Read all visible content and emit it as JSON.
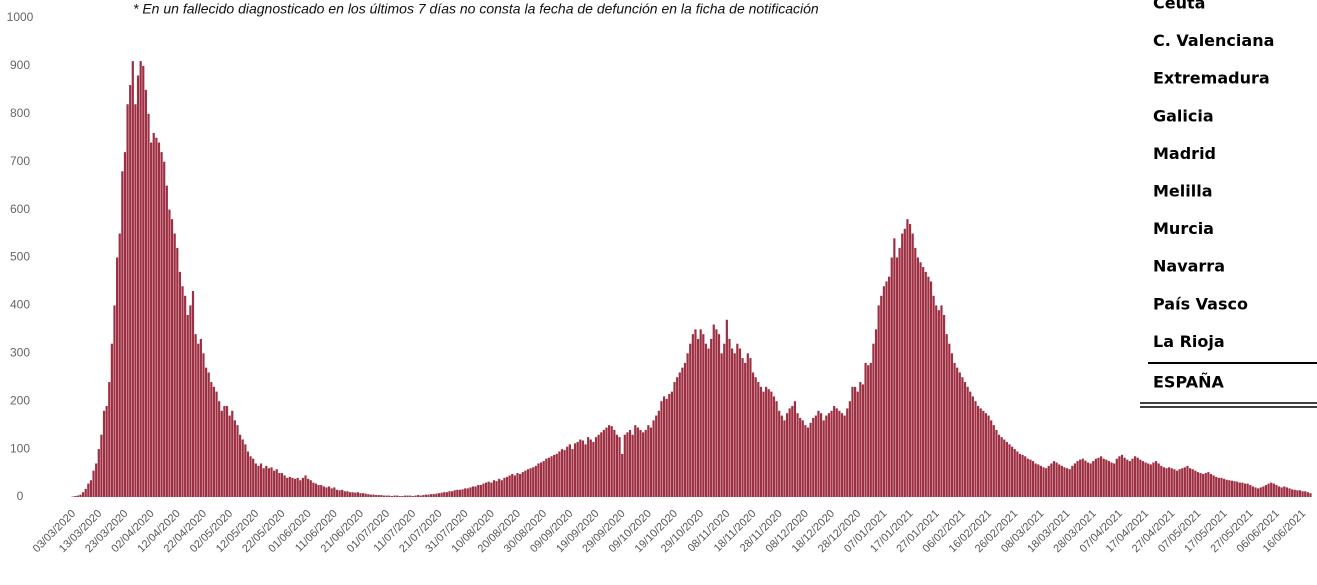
{
  "chart_data": {
    "type": "bar",
    "annotation": "* En un  fallecido diagnosticado en los últimos 7 días no consta la fecha de defunción en la ficha de notificación",
    "color": "#9e2f42",
    "ylim": [
      0,
      1000
    ],
    "yticks": [
      0,
      100,
      200,
      300,
      400,
      500,
      600,
      700,
      800,
      900,
      1000
    ],
    "categories": [
      "03/03/2020",
      null,
      null,
      null,
      null,
      null,
      null,
      null,
      null,
      null,
      "13/03/2020",
      null,
      null,
      null,
      null,
      null,
      null,
      null,
      null,
      null,
      "23/03/2020",
      null,
      null,
      null,
      null,
      null,
      null,
      null,
      null,
      null,
      "02/04/2020",
      null,
      null,
      null,
      null,
      null,
      null,
      null,
      null,
      null,
      "12/04/2020",
      null,
      null,
      null,
      null,
      null,
      null,
      null,
      null,
      null,
      "22/04/2020",
      null,
      null,
      null,
      null,
      null,
      null,
      null,
      null,
      null,
      "02/05/2020",
      null,
      null,
      null,
      null,
      null,
      null,
      null,
      null,
      null,
      "12/05/2020",
      null,
      null,
      null,
      null,
      null,
      null,
      null,
      null,
      null,
      "22/05/2020",
      null,
      null,
      null,
      null,
      null,
      null,
      null,
      null,
      null,
      "01/06/2020",
      null,
      null,
      null,
      null,
      null,
      null,
      null,
      null,
      null,
      "11/06/2020",
      null,
      null,
      null,
      null,
      null,
      null,
      null,
      null,
      null,
      "21/06/2020",
      null,
      null,
      null,
      null,
      null,
      null,
      null,
      null,
      null,
      "01/07/2020",
      null,
      null,
      null,
      null,
      null,
      null,
      null,
      null,
      null,
      "11/07/2020",
      null,
      null,
      null,
      null,
      null,
      null,
      null,
      null,
      null,
      "21/07/2020",
      null,
      null,
      null,
      null,
      null,
      null,
      null,
      null,
      null,
      "31/07/2020",
      null,
      null,
      null,
      null,
      null,
      null,
      null,
      null,
      null,
      "10/08/2020",
      null,
      null,
      null,
      null,
      null,
      null,
      null,
      null,
      null,
      "20/08/2020",
      null,
      null,
      null,
      null,
      null,
      null,
      null,
      null,
      null,
      "30/08/2020",
      null,
      null,
      null,
      null,
      null,
      null,
      null,
      null,
      null,
      "09/09/2020",
      null,
      null,
      null,
      null,
      null,
      null,
      null,
      null,
      null,
      "19/09/2020",
      null,
      null,
      null,
      null,
      null,
      null,
      null,
      null,
      null,
      "29/09/2020",
      null,
      null,
      null,
      null,
      null,
      null,
      null,
      null,
      null,
      "09/10/2020",
      null,
      null,
      null,
      null,
      null,
      null,
      null,
      null,
      null,
      "19/10/2020",
      null,
      null,
      null,
      null,
      null,
      null,
      null,
      null,
      null,
      "29/10/2020",
      null,
      null,
      null,
      null,
      null,
      null,
      null,
      null,
      null,
      "08/11/2020",
      null,
      null,
      null,
      null,
      null,
      null,
      null,
      null,
      null,
      "18/11/2020",
      null,
      null,
      null,
      null,
      null,
      null,
      null,
      null,
      null,
      "28/11/2020",
      null,
      null,
      null,
      null,
      null,
      null,
      null,
      null,
      null,
      "08/12/2020",
      null,
      null,
      null,
      null,
      null,
      null,
      null,
      null,
      null,
      "18/12/2020",
      null,
      null,
      null,
      null,
      null,
      null,
      null,
      null,
      null,
      "28/12/2020",
      null,
      null,
      null,
      null,
      null,
      null,
      null,
      null,
      null,
      "07/01/2021",
      null,
      null,
      null,
      null,
      null,
      null,
      null,
      null,
      null,
      "17/01/2021",
      null,
      null,
      null,
      null,
      null,
      null,
      null,
      null,
      null,
      "27/01/2021",
      null,
      null,
      null,
      null,
      null,
      null,
      null,
      null,
      null,
      "06/02/2021",
      null,
      null,
      null,
      null,
      null,
      null,
      null,
      null,
      null,
      "16/02/2021",
      null,
      null,
      null,
      null,
      null,
      null,
      null,
      null,
      null,
      "26/02/2021",
      null,
      null,
      null,
      null,
      null,
      null,
      null,
      null,
      null,
      "08/03/2021",
      null,
      null,
      null,
      null,
      null,
      null,
      null,
      null,
      null,
      "18/03/2021",
      null,
      null,
      null,
      null,
      null,
      null,
      null,
      null,
      null,
      "28/03/2021",
      null,
      null,
      null,
      null,
      null,
      null,
      null,
      null,
      null,
      "07/04/2021",
      null,
      null,
      null,
      null,
      null,
      null,
      null,
      null,
      null,
      "17/04/2021",
      null,
      null,
      null,
      null,
      null,
      null,
      null,
      null,
      null,
      "27/04/2021",
      null,
      null,
      null,
      null,
      null,
      null,
      null,
      null,
      null,
      "07/05/2021",
      null,
      null,
      null,
      null,
      null,
      null,
      null,
      null,
      null,
      "17/05/2021",
      null,
      null,
      null,
      null,
      null,
      null,
      null,
      null,
      null,
      "27/05/2021",
      null,
      null,
      null,
      null,
      null,
      null,
      null,
      null,
      null,
      "06/06/2021",
      null,
      null,
      null,
      null,
      null,
      null,
      null,
      null,
      null,
      "16/06/2021",
      null,
      null,
      null,
      null
    ],
    "values": [
      0,
      1,
      2,
      3,
      5,
      10,
      17,
      28,
      35,
      55,
      70,
      100,
      130,
      180,
      190,
      240,
      320,
      400,
      500,
      550,
      680,
      720,
      820,
      860,
      910,
      820,
      880,
      910,
      900,
      850,
      800,
      740,
      760,
      750,
      740,
      720,
      700,
      650,
      600,
      580,
      550,
      520,
      470,
      440,
      420,
      380,
      400,
      430,
      340,
      320,
      330,
      300,
      270,
      260,
      240,
      230,
      220,
      200,
      180,
      190,
      190,
      170,
      180,
      160,
      150,
      130,
      120,
      110,
      95,
      85,
      80,
      70,
      65,
      70,
      60,
      65,
      60,
      62,
      55,
      58,
      50,
      50,
      45,
      40,
      42,
      40,
      38,
      40,
      35,
      40,
      45,
      38,
      35,
      30,
      28,
      25,
      25,
      22,
      20,
      22,
      18,
      20,
      15,
      14,
      15,
      12,
      12,
      10,
      10,
      9,
      10,
      8,
      8,
      7,
      6,
      5,
      5,
      4,
      4,
      4,
      3,
      3,
      3,
      2,
      3,
      3,
      2,
      2,
      3,
      3,
      3,
      2,
      3,
      4,
      3,
      4,
      5,
      5,
      6,
      6,
      7,
      8,
      9,
      10,
      10,
      12,
      12,
      14,
      15,
      15,
      16,
      18,
      18,
      20,
      22,
      22,
      25,
      25,
      28,
      30,
      32,
      30,
      35,
      33,
      38,
      35,
      40,
      42,
      45,
      48,
      45,
      50,
      48,
      52,
      55,
      58,
      60,
      62,
      65,
      70,
      72,
      75,
      80,
      82,
      85,
      88,
      90,
      95,
      100,
      98,
      105,
      110,
      100,
      112,
      115,
      120,
      118,
      110,
      125,
      120,
      115,
      125,
      130,
      135,
      140,
      145,
      150,
      148,
      140,
      130,
      125,
      90,
      130,
      135,
      140,
      130,
      150,
      145,
      140,
      135,
      140,
      150,
      145,
      160,
      170,
      180,
      200,
      210,
      205,
      215,
      220,
      240,
      250,
      260,
      270,
      280,
      300,
      320,
      340,
      350,
      330,
      350,
      340,
      320,
      310,
      330,
      360,
      350,
      340,
      300,
      320,
      370,
      330,
      310,
      300,
      320,
      310,
      290,
      280,
      300,
      290,
      260,
      250,
      240,
      230,
      220,
      230,
      225,
      220,
      210,
      200,
      180,
      170,
      160,
      175,
      185,
      190,
      200,
      175,
      165,
      160,
      150,
      145,
      155,
      165,
      170,
      180,
      175,
      160,
      170,
      175,
      180,
      190,
      185,
      180,
      175,
      170,
      185,
      200,
      230,
      230,
      220,
      240,
      235,
      280,
      275,
      280,
      320,
      350,
      400,
      420,
      440,
      450,
      460,
      500,
      540,
      500,
      520,
      550,
      560,
      580,
      570,
      550,
      520,
      500,
      490,
      480,
      470,
      460,
      450,
      420,
      400,
      390,
      400,
      380,
      340,
      320,
      300,
      280,
      270,
      260,
      250,
      240,
      230,
      220,
      210,
      200,
      190,
      185,
      180,
      175,
      170,
      160,
      150,
      140,
      130,
      125,
      120,
      115,
      110,
      105,
      100,
      95,
      90,
      88,
      85,
      80,
      78,
      75,
      70,
      68,
      65,
      62,
      60,
      65,
      70,
      75,
      72,
      68,
      65,
      62,
      60,
      58,
      65,
      70,
      75,
      78,
      80,
      76,
      72,
      70,
      75,
      80,
      82,
      85,
      80,
      78,
      75,
      72,
      70,
      80,
      85,
      88,
      82,
      78,
      75,
      80,
      85,
      82,
      78,
      75,
      72,
      70,
      68,
      72,
      75,
      70,
      65,
      62,
      60,
      62,
      60,
      58,
      55,
      58,
      60,
      62,
      65,
      60,
      58,
      55,
      52,
      50,
      48,
      50,
      52,
      48,
      45,
      42,
      40,
      40,
      38,
      36,
      35,
      34,
      33,
      32,
      30,
      30,
      28,
      28,
      25,
      22,
      20,
      18,
      20,
      22,
      25,
      28,
      30,
      28,
      25,
      22,
      20,
      22,
      20,
      18,
      16,
      15,
      14,
      14,
      12,
      12,
      10,
      8
    ]
  },
  "side_list": {
    "rows": [
      "Ceuta",
      "C. Valenciana",
      "Extremadura",
      "Galicia",
      "Madrid",
      "Melilla",
      "Murcia",
      "Navarra",
      "País Vasco",
      "La Rioja"
    ],
    "total": "ESPAÑA"
  }
}
